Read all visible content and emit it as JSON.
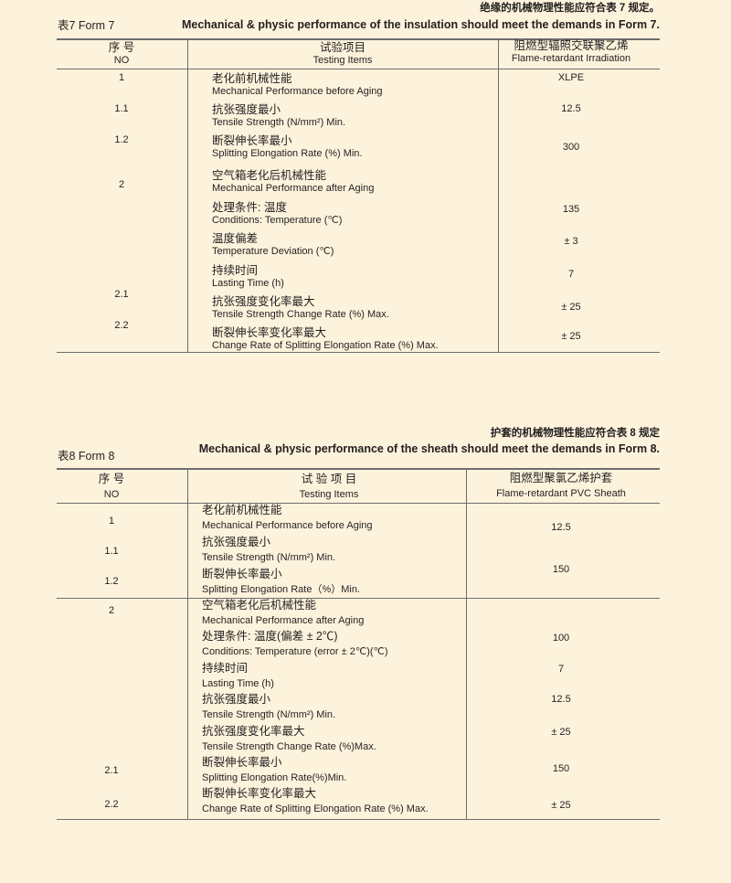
{
  "form7": {
    "heading_cn": "绝缘的机械物理性能应符合表 7 规定。",
    "label": "表7  Form 7",
    "heading_en": "Mechanical  & physic performance of the insulation should meet the demands in Form 7.",
    "header": {
      "no_cn": "序 号",
      "no_en": "NO",
      "item_cn": "试验项目",
      "item_en": "Testing Items",
      "value_cn": "阻燃型辐照交联聚乙烯",
      "value_en": "Flame-retardant Irradiation"
    },
    "numbers": [
      "1",
      "1.1",
      "1.2",
      "2",
      "2.1",
      "2.2"
    ],
    "items": [
      {
        "cn": "老化前机械性能",
        "en": "Mechanical Performance before Aging"
      },
      {
        "cn": "抗张强度最小",
        "en": "Tensile Strength (N/mm²) Min."
      },
      {
        "cn": "断裂伸长率最小",
        "en": "Splitting Elongation Rate (%) Min."
      },
      {
        "cn": "空气箱老化后机械性能",
        "en": "Mechanical Performance after Aging"
      },
      {
        "cn": "处理条件:  温度",
        "en": "Conditions: Temperature (℃)"
      },
      {
        "cn": "温度偏差",
        "en": "Temperature Deviation (℃)"
      },
      {
        "cn": "持续时间",
        "en": "Lasting Time (h)"
      },
      {
        "cn": "抗张强度变化率最大",
        "en": "Tensile Strength Change Rate (%) Max."
      },
      {
        "cn": "断裂伸长率变化率最大",
        "en": "Change Rate of Splitting Elongation Rate (%) Max."
      }
    ],
    "values": [
      "XLPE",
      "12.5",
      "300",
      "135",
      "± 3",
      "7",
      "± 25",
      "± 25"
    ]
  },
  "form8": {
    "heading_cn": "护套的机械物理性能应符合表 8 规定",
    "label": "表8  Form 8",
    "heading_en": "Mechanical  & physic performance of the sheath should meet the demands in Form 8.",
    "header": {
      "no_cn": "序 号",
      "no_en": "NO",
      "item_cn": "试 验 项 目",
      "item_en": "Testing Items",
      "value_cn": "阻燃型聚氯乙烯护套",
      "value_en": "Flame-retardant PVC Sheath"
    },
    "numbers": [
      "1",
      "1.1",
      "1.2",
      "2",
      "2.1",
      "2.2"
    ],
    "items": [
      {
        "cn": "老化前机械性能",
        "en": "Mechanical Performance before Aging"
      },
      {
        "cn": "抗张强度最小",
        "en": "Tensile Strength (N/mm²) Min."
      },
      {
        "cn": "断裂伸长率最小",
        "en": "Splitting Elongation Rate（%）Min."
      },
      {
        "cn": "空气箱老化后机械性能",
        "en": "Mechanical Performance after Aging"
      },
      {
        "cn": "处理条件:  温度(偏差 ± 2℃)",
        "en": " Conditions: Temperature (error ± 2℃)(℃)"
      },
      {
        "cn": "持续时间",
        "en": "Lasting Time (h)"
      },
      {
        "cn": "抗张强度最小",
        "en": "Tensile Strength (N/mm²) Min."
      },
      {
        "cn": "抗张强度变化率最大",
        "en": "Tensile Strength Change Rate (%)Max."
      },
      {
        "cn": "断裂伸长率最小",
        "en": "Splitting Elongation Rate(%)Min."
      },
      {
        "cn": "断裂伸长率变化率最大",
        "en": "Change Rate of Splitting Elongation Rate (%) Max."
      }
    ],
    "values": [
      "12.5",
      "150",
      "100",
      "7",
      "12.5",
      "± 25",
      "150",
      "± 25"
    ]
  }
}
